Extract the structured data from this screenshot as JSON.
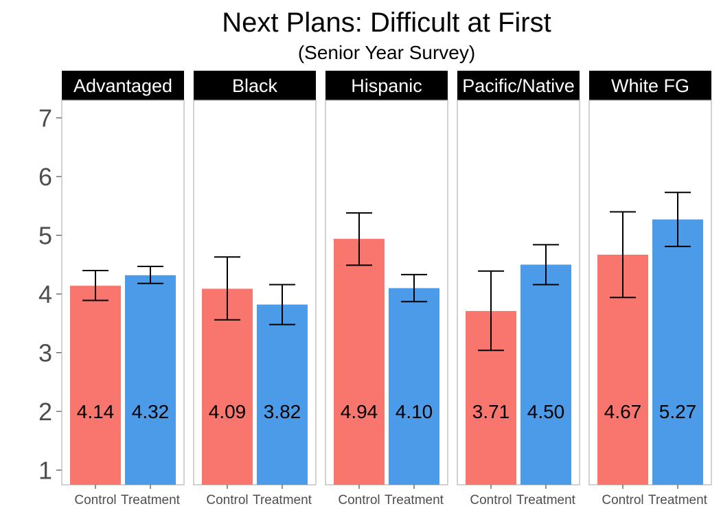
{
  "chart_data": {
    "type": "bar",
    "title": "Next Plans: Difficult at First",
    "subtitle": "(Senior Year Survey)",
    "xlabel": "",
    "ylabel": "",
    "ylim": [
      0.75,
      7.3
    ],
    "yticks": [
      1,
      2,
      3,
      4,
      5,
      6,
      7
    ],
    "categories": [
      "Control",
      "Treatment"
    ],
    "colors": {
      "Control": "#F8766D",
      "Treatment": "#4C9BE8"
    },
    "label_y": 2,
    "grid": false,
    "legend": "none",
    "panels": [
      {
        "name": "Advantaged",
        "values": [
          4.14,
          4.32
        ],
        "labels": [
          "4.14",
          "4.32"
        ],
        "err_low": [
          3.89,
          4.18
        ],
        "err_high": [
          4.4,
          4.47
        ]
      },
      {
        "name": "Black",
        "values": [
          4.09,
          3.82
        ],
        "labels": [
          "4.09",
          "3.82"
        ],
        "err_low": [
          3.56,
          3.48
        ],
        "err_high": [
          4.63,
          4.16
        ]
      },
      {
        "name": "Hispanic",
        "values": [
          4.94,
          4.1
        ],
        "labels": [
          "4.94",
          "4.10"
        ],
        "err_low": [
          4.49,
          3.87
        ],
        "err_high": [
          5.38,
          4.33
        ]
      },
      {
        "name": "Pacific/Native",
        "values": [
          3.71,
          4.5
        ],
        "labels": [
          "3.71",
          "4.50"
        ],
        "err_low": [
          3.04,
          4.16
        ],
        "err_high": [
          4.39,
          4.84
        ]
      },
      {
        "name": "White FG",
        "values": [
          4.67,
          5.27
        ],
        "labels": [
          "4.67",
          "5.27"
        ],
        "err_low": [
          3.94,
          4.81
        ],
        "err_high": [
          5.4,
          5.73
        ]
      }
    ]
  }
}
